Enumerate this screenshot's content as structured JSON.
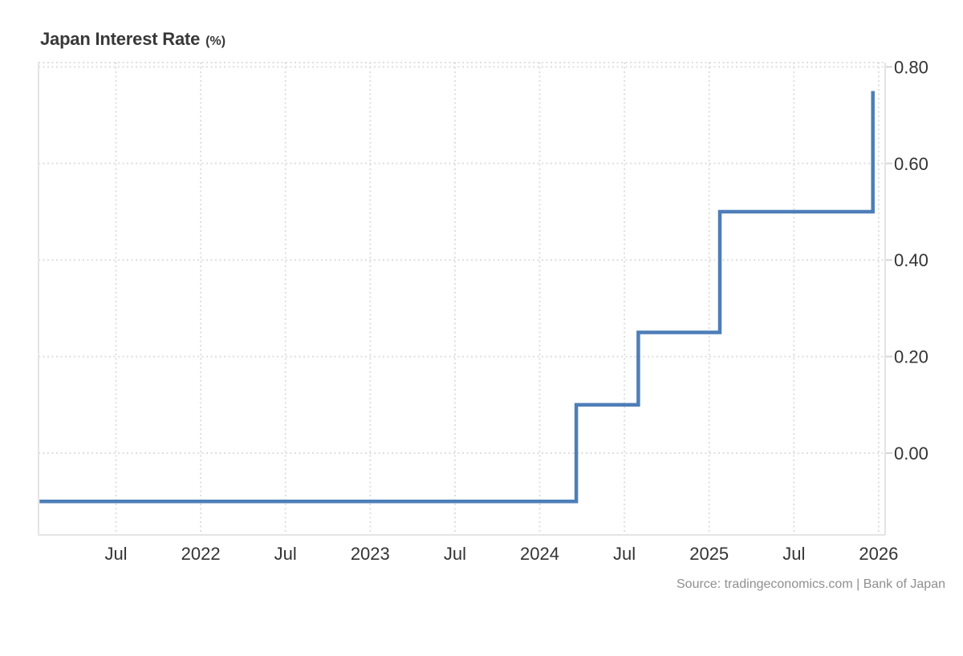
{
  "header": {
    "title": "Japan Interest Rate",
    "unit": "(%)"
  },
  "footer": {
    "source": "Source: tradingeconomics.com | Bank of Japan"
  },
  "chart_data": {
    "type": "line",
    "line_shape": "step-after",
    "title": "Japan Interest Rate",
    "ylabel": "%",
    "xlabel": "",
    "legend": "none",
    "grid": "dotted",
    "background": "#ffffff",
    "line_color": "#4d7eb8",
    "axis_text_color": "#333333",
    "grid_color": "#dedede",
    "border_color": "#e4e4e4",
    "ylim": [
      -0.169,
      0.809
    ],
    "xlim": [
      "2021-01-19",
      "2026-01-13"
    ],
    "y_ticks": [
      {
        "label": "0.80",
        "value": 0.8
      },
      {
        "label": "0.60",
        "value": 0.6
      },
      {
        "label": "0.40",
        "value": 0.4
      },
      {
        "label": "0.20",
        "value": 0.2
      },
      {
        "label": "0.00",
        "value": 0.0
      }
    ],
    "x_ticks": [
      {
        "label": "Jul",
        "date": "2021-07-01"
      },
      {
        "label": "2022",
        "date": "2022-01-01"
      },
      {
        "label": "Jul",
        "date": "2022-07-01"
      },
      {
        "label": "2023",
        "date": "2023-01-01"
      },
      {
        "label": "Jul",
        "date": "2023-07-01"
      },
      {
        "label": "2024",
        "date": "2024-01-01"
      },
      {
        "label": "Jul",
        "date": "2024-07-01"
      },
      {
        "label": "2025",
        "date": "2025-01-01"
      },
      {
        "label": "Jul",
        "date": "2025-07-01"
      },
      {
        "label": "2026",
        "date": "2026-01-01"
      }
    ],
    "series": [
      {
        "name": "Japan Interest Rate",
        "color": "#4d7eb8",
        "points": [
          {
            "date": "2021-01-19",
            "value": -0.1
          },
          {
            "date": "2024-03-19",
            "value": 0.1
          },
          {
            "date": "2024-07-31",
            "value": 0.25
          },
          {
            "date": "2025-01-24",
            "value": 0.5
          },
          {
            "date": "2025-12-19",
            "value": 0.75
          }
        ]
      }
    ]
  }
}
